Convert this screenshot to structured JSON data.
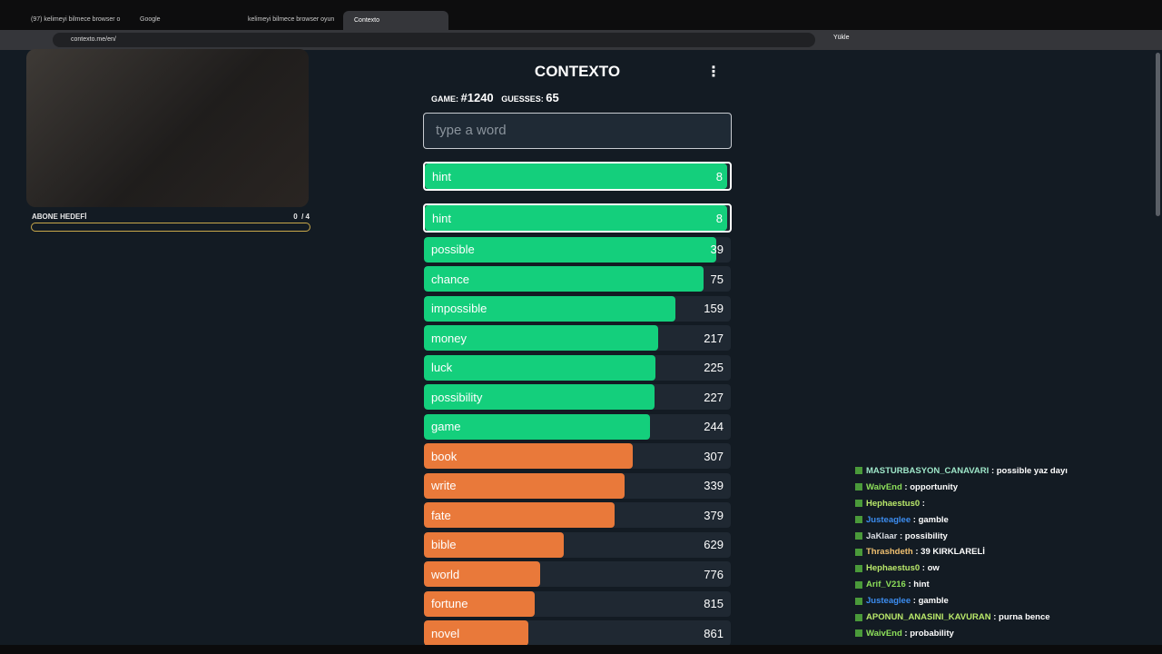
{
  "browser": {
    "tabs": [
      "(97) kelimeyi bilmece browser o",
      "Google",
      "kelimeyi bilmece browser oyun",
      "Contexto"
    ],
    "url": "contexto.me/en/",
    "install": "Yükle"
  },
  "overlay": {
    "goal_label": "ABONE HEDEFİ",
    "goal_count": "0",
    "goal_total": "/ 4"
  },
  "game": {
    "title": "CONTEXTO",
    "game_label": "GAME:",
    "game_number": "#1240",
    "guesses_label": "GUESSES:",
    "guesses_count": 65,
    "placeholder": "type a word",
    "last_guess": {
      "word": "hint",
      "rank": 8,
      "color": "#14cf7c"
    },
    "guesses": [
      {
        "word": "hint",
        "rank": 8,
        "color": "#14cf7c"
      },
      {
        "word": "possible",
        "rank": 39,
        "color": "#14cf7c"
      },
      {
        "word": "chance",
        "rank": 75,
        "color": "#14cf7c"
      },
      {
        "word": "impossible",
        "rank": 159,
        "color": "#14cf7c"
      },
      {
        "word": "money",
        "rank": 217,
        "color": "#14cf7c"
      },
      {
        "word": "luck",
        "rank": 225,
        "color": "#14cf7c"
      },
      {
        "word": "possibility",
        "rank": 227,
        "color": "#14cf7c"
      },
      {
        "word": "game",
        "rank": 244,
        "color": "#14cf7c"
      },
      {
        "word": "book",
        "rank": 307,
        "color": "#e9793a"
      },
      {
        "word": "write",
        "rank": 339,
        "color": "#e9793a"
      },
      {
        "word": "fate",
        "rank": 379,
        "color": "#e9793a"
      },
      {
        "word": "bible",
        "rank": 629,
        "color": "#e9793a"
      },
      {
        "word": "world",
        "rank": 776,
        "color": "#e9793a"
      },
      {
        "word": "fortune",
        "rank": 815,
        "color": "#e9793a"
      },
      {
        "word": "novel",
        "rank": 861,
        "color": "#e9793a"
      }
    ]
  },
  "chat": [
    {
      "user": "MASTURBASYON_CANAVARI",
      "color": "#9ee6c8",
      "message": ": possible yaz dayı"
    },
    {
      "user": "WaivEnd",
      "color": "#8de05a",
      "message": ": opportunity"
    },
    {
      "user": "Hephaestus0",
      "color": "#b9e86a",
      "message": ":"
    },
    {
      "user": "Justeaglee",
      "color": "#3c8df0",
      "message": ": gamble"
    },
    {
      "user": "JaKlaar",
      "color": "#d9dde3",
      "message": ": possibility"
    },
    {
      "user": "Thrashdeth",
      "color": "#f0c070",
      "message": ": 39 KIRKLARELİ"
    },
    {
      "user": "Hephaestus0",
      "color": "#b9e86a",
      "message": ": ow"
    },
    {
      "user": "Arif_V216",
      "color": "#8de05a",
      "message": ": hint"
    },
    {
      "user": "Justeaglee",
      "color": "#3c8df0",
      "message": ": gamble"
    },
    {
      "user": "APONUN_ANASINI_KAVURAN",
      "color": "#b9e86a",
      "message": ": purna bence"
    },
    {
      "user": "WaivEnd",
      "color": "#8de05a",
      "message": ": probability"
    }
  ]
}
